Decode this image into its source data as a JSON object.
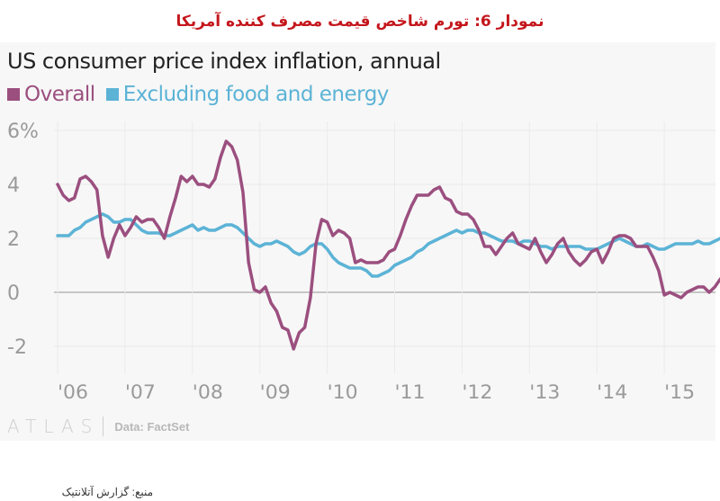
{
  "headline": "نمودار 6: تورم شاخص قیمت مصرف کننده آمریکا",
  "footer": {
    "brand": "ATLAS",
    "source": "Data: FactSet"
  },
  "bottom_note": "منبع: گزارش آتلانتیک",
  "chart_data": {
    "type": "line",
    "title": "US consumer price index inflation, annual",
    "xlabel": "",
    "ylabel": "",
    "ylim": [
      -2.8,
      6.3
    ],
    "yticks": [
      -2,
      0,
      2,
      4,
      6
    ],
    "ytick_labels": [
      "-2",
      "0",
      "2",
      "4",
      "6%"
    ],
    "xticks": [
      "'06",
      "'07",
      "'08",
      "'09",
      "'10",
      "'11",
      "'12",
      "'13",
      "'14",
      "'15"
    ],
    "x_start": "2006-01",
    "frequency": "monthly",
    "grid": true,
    "legend": "top-left",
    "colors": {
      "Overall": "#9b4f7f",
      "Excluding food and energy": "#5cb3d6"
    },
    "series": [
      {
        "name": "Overall",
        "values": [
          4.0,
          3.6,
          3.4,
          3.5,
          4.2,
          4.3,
          4.1,
          3.8,
          2.1,
          1.3,
          2.0,
          2.5,
          2.1,
          2.4,
          2.8,
          2.6,
          2.7,
          2.7,
          2.4,
          2.0,
          2.8,
          3.5,
          4.3,
          4.1,
          4.3,
          4.0,
          4.0,
          3.9,
          4.2,
          5.0,
          5.6,
          5.4,
          4.9,
          3.7,
          1.1,
          0.1,
          0.0,
          0.2,
          -0.4,
          -0.7,
          -1.3,
          -1.4,
          -2.1,
          -1.5,
          -1.3,
          -0.2,
          1.8,
          2.7,
          2.6,
          2.1,
          2.3,
          2.2,
          2.0,
          1.1,
          1.2,
          1.1,
          1.1,
          1.1,
          1.2,
          1.5,
          1.6,
          2.1,
          2.7,
          3.2,
          3.6,
          3.6,
          3.6,
          3.8,
          3.9,
          3.5,
          3.4,
          3.0,
          2.9,
          2.9,
          2.7,
          2.3,
          1.7,
          1.7,
          1.4,
          1.7,
          2.0,
          2.2,
          1.8,
          1.7,
          1.6,
          2.0,
          1.5,
          1.1,
          1.4,
          1.8,
          2.0,
          1.5,
          1.2,
          1.0,
          1.2,
          1.5,
          1.6,
          1.1,
          1.5,
          2.0,
          2.1,
          2.1,
          2.0,
          1.7,
          1.7,
          1.7,
          1.3,
          0.8,
          -0.1,
          0.0,
          -0.1,
          -0.2,
          0.0,
          0.1,
          0.2,
          0.2,
          0.0,
          0.2,
          0.5
        ],
        "note": "approximate monthly values read from chart, Jan 2006 - Oct 2015"
      },
      {
        "name": "Excluding food and energy",
        "values": [
          2.1,
          2.1,
          2.1,
          2.3,
          2.4,
          2.6,
          2.7,
          2.8,
          2.9,
          2.8,
          2.6,
          2.6,
          2.7,
          2.7,
          2.5,
          2.3,
          2.2,
          2.2,
          2.2,
          2.1,
          2.1,
          2.2,
          2.3,
          2.4,
          2.5,
          2.3,
          2.4,
          2.3,
          2.3,
          2.4,
          2.5,
          2.5,
          2.4,
          2.2,
          2.0,
          1.8,
          1.7,
          1.8,
          1.8,
          1.9,
          1.8,
          1.7,
          1.5,
          1.4,
          1.5,
          1.7,
          1.8,
          1.8,
          1.6,
          1.3,
          1.1,
          1.0,
          0.9,
          0.9,
          0.9,
          0.8,
          0.6,
          0.6,
          0.7,
          0.8,
          1.0,
          1.1,
          1.2,
          1.3,
          1.5,
          1.6,
          1.8,
          1.9,
          2.0,
          2.1,
          2.2,
          2.3,
          2.2,
          2.3,
          2.3,
          2.2,
          2.2,
          2.1,
          2.0,
          1.9,
          1.9,
          1.9,
          1.8,
          1.9,
          1.9,
          1.8,
          1.7,
          1.7,
          1.6,
          1.7,
          1.7,
          1.7,
          1.7,
          1.7,
          1.6,
          1.6,
          1.6,
          1.7,
          1.8,
          1.9,
          2.0,
          1.9,
          1.8,
          1.7,
          1.7,
          1.8,
          1.7,
          1.6,
          1.6,
          1.7,
          1.8,
          1.8,
          1.8,
          1.8,
          1.9,
          1.8,
          1.8,
          1.9,
          2.0
        ],
        "note": "approximate monthly values read from chart, Jan 2006 - Oct 2015"
      }
    ]
  }
}
